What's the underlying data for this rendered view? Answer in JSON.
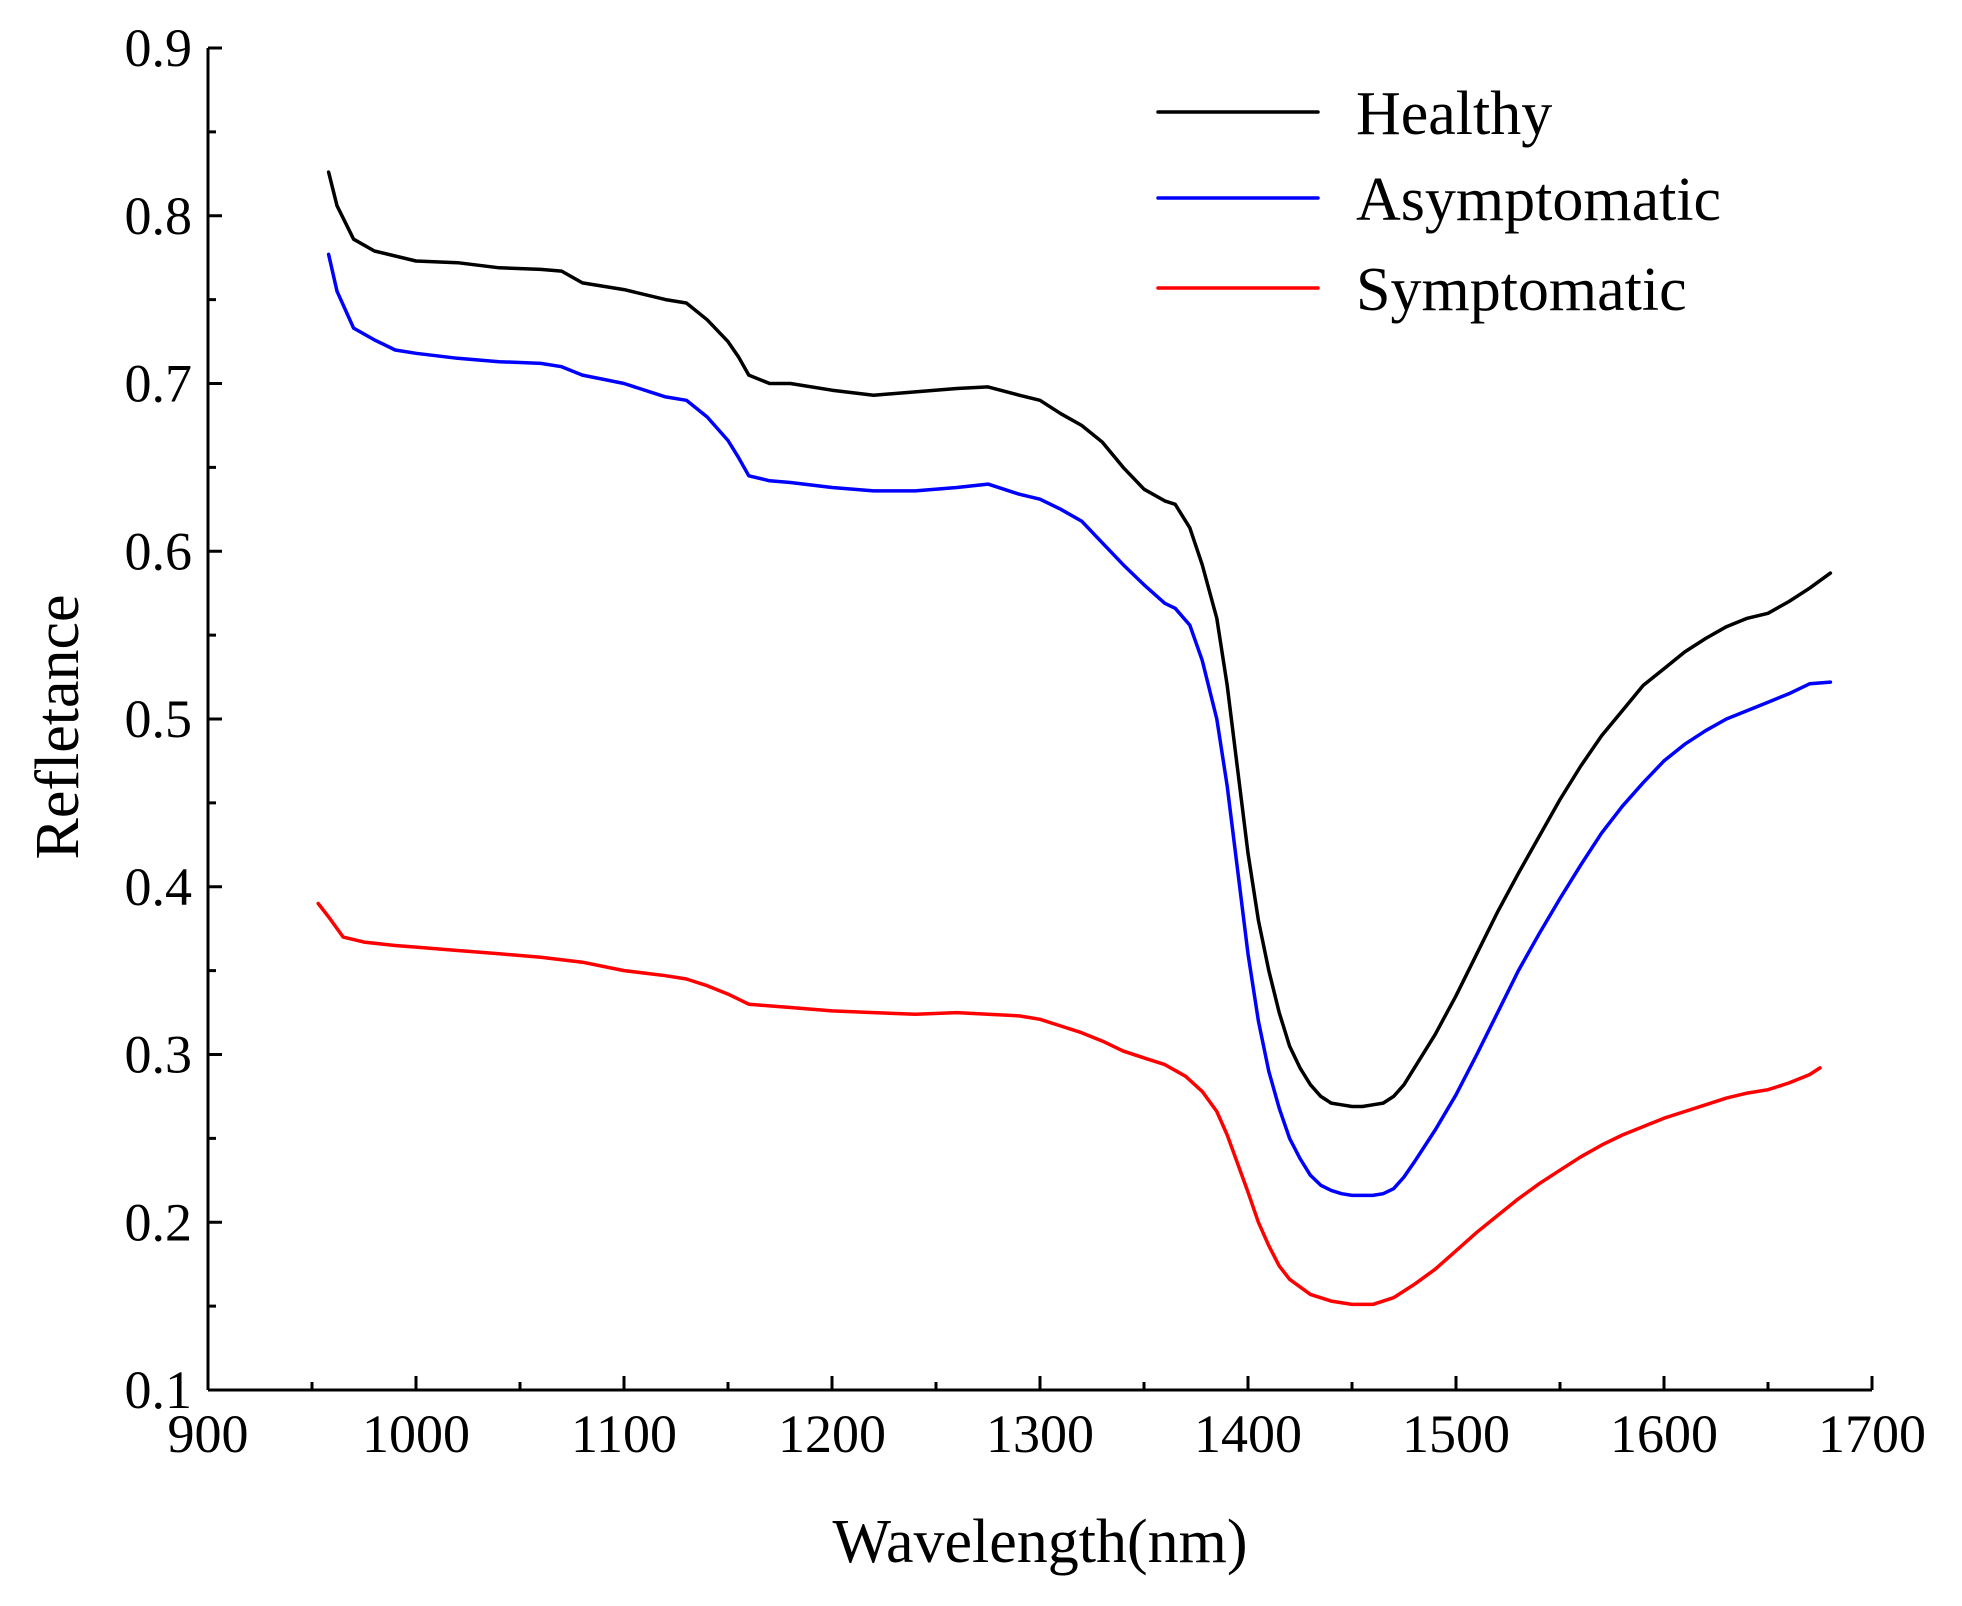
{
  "chart_data": {
    "type": "line",
    "title": "",
    "xlabel": "Wavelength(nm)",
    "ylabel": "Refletance",
    "xlim": [
      900,
      1700
    ],
    "ylim": [
      0.1,
      0.9
    ],
    "xticks": [
      900,
      1000,
      1100,
      1200,
      1300,
      1400,
      1500,
      1600,
      1700
    ],
    "yticks": [
      0.1,
      0.2,
      0.3,
      0.4,
      0.5,
      0.6,
      0.7,
      0.8,
      0.9
    ],
    "xtick_labels": [
      "900",
      "1000",
      "1100",
      "1200",
      "1300",
      "1400",
      "1500",
      "1600",
      "1700"
    ],
    "ytick_labels": [
      "0.1",
      "0.2",
      "0.3",
      "0.4",
      "0.5",
      "0.6",
      "0.7",
      "0.8",
      "0.9"
    ],
    "grid": false,
    "legend_position": "top-right",
    "series": [
      {
        "name": "Healthy",
        "color": "#000000",
        "x": [
          958,
          962,
          970,
          980,
          990,
          1000,
          1020,
          1040,
          1060,
          1070,
          1080,
          1100,
          1120,
          1130,
          1140,
          1150,
          1155,
          1160,
          1170,
          1180,
          1200,
          1220,
          1240,
          1260,
          1275,
          1290,
          1300,
          1310,
          1320,
          1330,
          1340,
          1350,
          1360,
          1365,
          1372,
          1378,
          1385,
          1390,
          1395,
          1400,
          1405,
          1410,
          1415,
          1420,
          1425,
          1430,
          1435,
          1440,
          1445,
          1450,
          1455,
          1460,
          1465,
          1470,
          1475,
          1480,
          1490,
          1500,
          1510,
          1520,
          1530,
          1540,
          1550,
          1560,
          1570,
          1580,
          1590,
          1600,
          1610,
          1620,
          1630,
          1640,
          1650,
          1660,
          1670,
          1680
        ],
        "values": [
          0.826,
          0.806,
          0.786,
          0.779,
          0.776,
          0.773,
          0.772,
          0.769,
          0.768,
          0.767,
          0.76,
          0.756,
          0.75,
          0.748,
          0.738,
          0.725,
          0.716,
          0.705,
          0.7,
          0.7,
          0.696,
          0.693,
          0.695,
          0.697,
          0.698,
          0.693,
          0.69,
          0.682,
          0.675,
          0.665,
          0.65,
          0.637,
          0.63,
          0.628,
          0.614,
          0.592,
          0.56,
          0.52,
          0.47,
          0.42,
          0.38,
          0.35,
          0.325,
          0.305,
          0.292,
          0.282,
          0.275,
          0.271,
          0.27,
          0.269,
          0.269,
          0.27,
          0.271,
          0.275,
          0.282,
          0.292,
          0.312,
          0.335,
          0.36,
          0.385,
          0.408,
          0.43,
          0.452,
          0.472,
          0.49,
          0.505,
          0.52,
          0.53,
          0.54,
          0.548,
          0.555,
          0.56,
          0.563,
          0.57,
          0.578,
          0.587
        ]
      },
      {
        "name": "Asymptomatic",
        "color": "#0000ff",
        "x": [
          958,
          962,
          970,
          980,
          990,
          1000,
          1020,
          1040,
          1060,
          1070,
          1080,
          1100,
          1120,
          1130,
          1140,
          1150,
          1155,
          1160,
          1170,
          1180,
          1200,
          1220,
          1240,
          1260,
          1275,
          1290,
          1300,
          1310,
          1320,
          1330,
          1340,
          1350,
          1360,
          1365,
          1372,
          1378,
          1385,
          1390,
          1395,
          1400,
          1405,
          1410,
          1415,
          1420,
          1425,
          1430,
          1435,
          1440,
          1445,
          1450,
          1455,
          1460,
          1465,
          1470,
          1475,
          1480,
          1490,
          1500,
          1510,
          1520,
          1530,
          1540,
          1550,
          1560,
          1570,
          1580,
          1590,
          1600,
          1610,
          1620,
          1630,
          1640,
          1650,
          1660,
          1670,
          1680
        ],
        "values": [
          0.777,
          0.755,
          0.733,
          0.726,
          0.72,
          0.718,
          0.715,
          0.713,
          0.712,
          0.71,
          0.705,
          0.7,
          0.692,
          0.69,
          0.68,
          0.666,
          0.656,
          0.645,
          0.642,
          0.641,
          0.638,
          0.636,
          0.636,
          0.638,
          0.64,
          0.634,
          0.631,
          0.625,
          0.618,
          0.605,
          0.592,
          0.58,
          0.569,
          0.566,
          0.556,
          0.535,
          0.5,
          0.46,
          0.41,
          0.36,
          0.32,
          0.29,
          0.268,
          0.25,
          0.238,
          0.228,
          0.222,
          0.219,
          0.217,
          0.216,
          0.216,
          0.216,
          0.217,
          0.22,
          0.227,
          0.236,
          0.255,
          0.276,
          0.3,
          0.325,
          0.35,
          0.372,
          0.393,
          0.413,
          0.432,
          0.448,
          0.462,
          0.475,
          0.485,
          0.493,
          0.5,
          0.505,
          0.51,
          0.515,
          0.521,
          0.522
        ]
      },
      {
        "name": "Symptomatic",
        "color": "#ff0000",
        "x": [
          953,
          958,
          965,
          975,
          990,
          1000,
          1020,
          1040,
          1060,
          1080,
          1100,
          1120,
          1130,
          1140,
          1150,
          1160,
          1170,
          1180,
          1200,
          1220,
          1240,
          1260,
          1275,
          1290,
          1300,
          1310,
          1320,
          1330,
          1340,
          1350,
          1360,
          1370,
          1378,
          1385,
          1390,
          1395,
          1400,
          1405,
          1410,
          1415,
          1420,
          1430,
          1440,
          1450,
          1460,
          1470,
          1480,
          1490,
          1500,
          1510,
          1520,
          1530,
          1540,
          1550,
          1560,
          1570,
          1580,
          1590,
          1600,
          1610,
          1620,
          1630,
          1640,
          1650,
          1660,
          1670,
          1675
        ],
        "values": [
          0.39,
          0.382,
          0.37,
          0.367,
          0.365,
          0.364,
          0.362,
          0.36,
          0.358,
          0.355,
          0.35,
          0.347,
          0.345,
          0.341,
          0.336,
          0.33,
          0.329,
          0.328,
          0.326,
          0.325,
          0.324,
          0.325,
          0.324,
          0.323,
          0.321,
          0.317,
          0.313,
          0.308,
          0.302,
          0.298,
          0.294,
          0.287,
          0.278,
          0.266,
          0.252,
          0.235,
          0.218,
          0.2,
          0.186,
          0.174,
          0.166,
          0.157,
          0.153,
          0.151,
          0.151,
          0.155,
          0.163,
          0.172,
          0.183,
          0.194,
          0.204,
          0.214,
          0.223,
          0.231,
          0.239,
          0.246,
          0.252,
          0.257,
          0.262,
          0.266,
          0.27,
          0.274,
          0.277,
          0.279,
          0.283,
          0.288,
          0.292
        ]
      }
    ]
  }
}
